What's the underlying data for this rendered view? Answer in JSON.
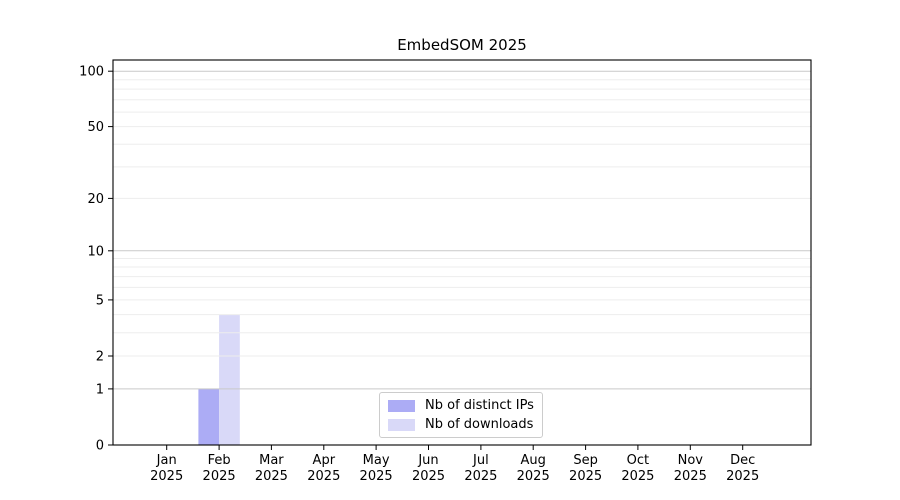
{
  "chart_data": {
    "type": "bar",
    "title": "EmbedSOM 2025",
    "x_months": [
      "Jan",
      "Feb",
      "Mar",
      "Apr",
      "May",
      "Jun",
      "Jul",
      "Aug",
      "Sep",
      "Oct",
      "Nov",
      "Dec"
    ],
    "x_year": "2025",
    "categories": [
      "Jan 2025",
      "Feb 2025",
      "Mar 2025",
      "Apr 2025",
      "May 2025",
      "Jun 2025",
      "Jul 2025",
      "Aug 2025",
      "Sep 2025",
      "Oct 2025",
      "Nov 2025",
      "Dec 2025"
    ],
    "series": [
      {
        "name": "Nb of distinct IPs",
        "color": "#acacf5",
        "values": [
          0,
          1,
          0,
          0,
          0,
          0,
          0,
          0,
          0,
          0,
          0,
          0
        ]
      },
      {
        "name": "Nb of downloads",
        "color": "#d9d9f8",
        "values": [
          0,
          4,
          0,
          0,
          0,
          0,
          0,
          0,
          0,
          0,
          0,
          0
        ]
      }
    ],
    "yscale": "log1p",
    "ylim": [
      0,
      115
    ],
    "y_ticks": [
      0,
      1,
      2,
      5,
      10,
      20,
      50,
      100
    ],
    "y_minor_gridlines": [
      3,
      4,
      6,
      7,
      8,
      9,
      30,
      40,
      60,
      70,
      80,
      90
    ],
    "grid": {
      "major_at": [
        1,
        10,
        100
      ],
      "major_color": "#c9c9c9",
      "minor_color": "#ededed"
    },
    "axis_color": "#000000",
    "legend_position": "lower center (inside axes)"
  }
}
